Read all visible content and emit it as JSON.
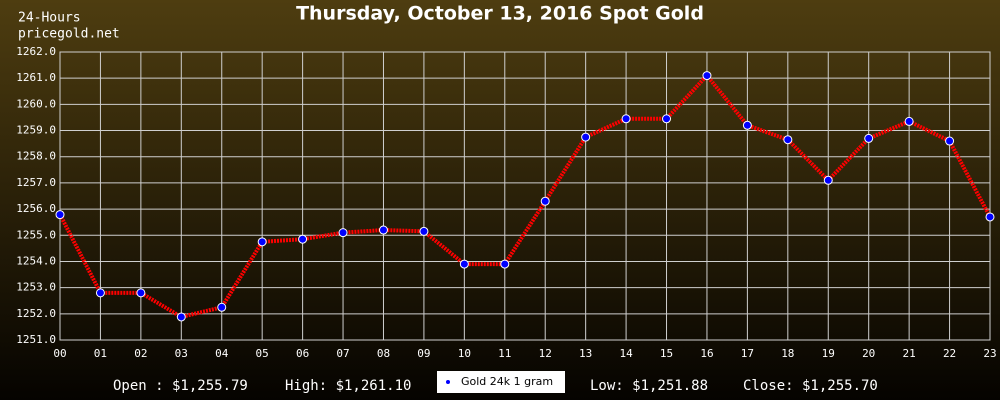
{
  "chart_data": {
    "type": "line",
    "title": "Thursday, October 13, 2016 Spot Gold",
    "subtitle": [
      "24-Hours",
      "pricegold.net"
    ],
    "categories": [
      "00",
      "01",
      "02",
      "03",
      "04",
      "05",
      "06",
      "07",
      "08",
      "09",
      "10",
      "11",
      "12",
      "13",
      "14",
      "15",
      "16",
      "17",
      "18",
      "19",
      "20",
      "21",
      "22",
      "23"
    ],
    "series": [
      {
        "name": "Gold 24k 1 gram",
        "color": "#ff0000",
        "marker_color": "#0000ff",
        "values": [
          1255.79,
          1252.8,
          1252.8,
          1251.88,
          1252.25,
          1254.75,
          1254.85,
          1255.1,
          1255.2,
          1255.15,
          1253.9,
          1253.9,
          1256.3,
          1258.75,
          1259.45,
          1259.45,
          1261.1,
          1259.2,
          1258.65,
          1257.1,
          1258.7,
          1259.35,
          1258.6,
          1255.7
        ]
      }
    ],
    "ylim": [
      1251,
      1262
    ],
    "yticks": [
      {
        "value": 1251,
        "label": "1251.0"
      },
      {
        "value": 1252,
        "label": "1252.0"
      },
      {
        "value": 1253,
        "label": "1253.0"
      },
      {
        "value": 1254,
        "label": "1254.0"
      },
      {
        "value": 1255,
        "label": "1255.0"
      },
      {
        "value": 1256,
        "label": "1256.0"
      },
      {
        "value": 1257,
        "label": "1257.0"
      },
      {
        "value": 1258,
        "label": "1258.0"
      },
      {
        "value": 1259,
        "label": "1259.0"
      },
      {
        "value": 1260,
        "label": "1260.0"
      },
      {
        "value": 1261,
        "label": "1261.0"
      },
      {
        "value": 1262,
        "label": "1262.0"
      }
    ],
    "grid": true,
    "stats": [
      "Open : $1,255.79",
      "High: $1,261.10",
      "Low: $1,251.88",
      "Close: $1,255.70"
    ]
  }
}
